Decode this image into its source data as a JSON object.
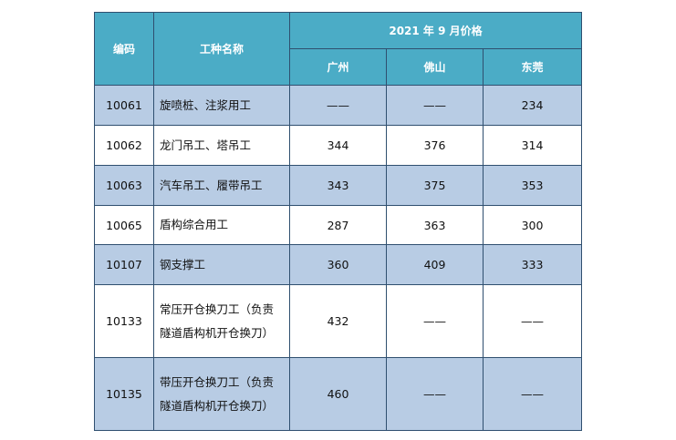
{
  "table": {
    "headers": {
      "code": "编码",
      "name": "工种名称",
      "price_group": "2021 年 9 月价格",
      "cities": [
        "广州",
        "佛山",
        "东莞"
      ]
    },
    "rows": [
      {
        "code": "10061",
        "name_lines": [
          "旋喷桩、注浆用工"
        ],
        "prices": [
          "——",
          "——",
          "234"
        ]
      },
      {
        "code": "10062",
        "name_lines": [
          "龙门吊工、塔吊工"
        ],
        "prices": [
          "344",
          "376",
          "314"
        ]
      },
      {
        "code": "10063",
        "name_lines": [
          "汽车吊工、履带吊工"
        ],
        "prices": [
          "343",
          "375",
          "353"
        ]
      },
      {
        "code": "10065",
        "name_lines": [
          "盾构综合用工"
        ],
        "prices": [
          "287",
          "363",
          "300"
        ]
      },
      {
        "code": "10107",
        "name_lines": [
          "钢支撑工"
        ],
        "prices": [
          "360",
          "409",
          "333"
        ]
      },
      {
        "code": "10133",
        "name_lines": [
          "常压开仓换刀工（负责",
          "隧道盾构机开仓换刀）"
        ],
        "prices": [
          "432",
          "——",
          "——"
        ]
      },
      {
        "code": "10135",
        "name_lines": [
          "带压开仓换刀工（负责",
          "隧道盾构机开仓换刀）"
        ],
        "prices": [
          "460",
          "——",
          "——"
        ]
      }
    ]
  },
  "colors": {
    "header_bg": "#4bacc6",
    "band_bg": "#b8cce4",
    "border": "#2f4f6f"
  }
}
